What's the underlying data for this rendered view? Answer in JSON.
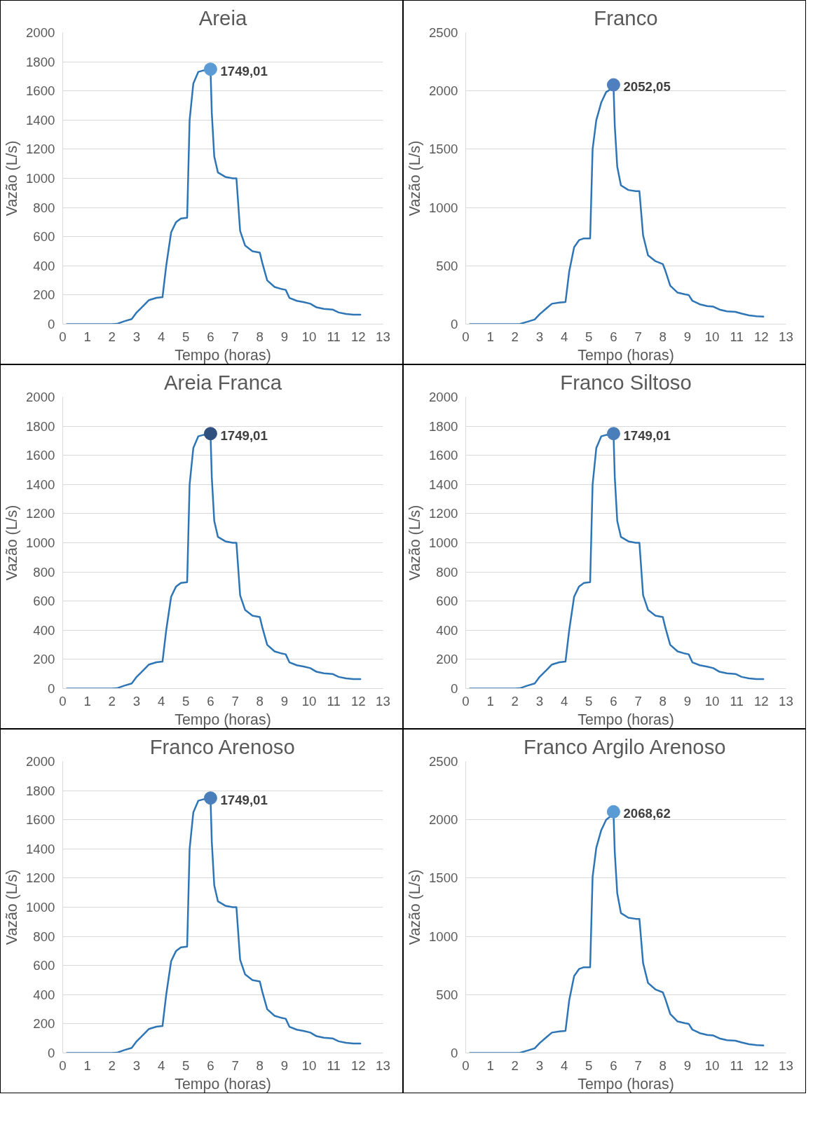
{
  "chart_data": [
    {
      "type": "line",
      "title": "Areia",
      "xlabel": "Tempo (horas)",
      "ylabel": "Vazão (L/s)",
      "xlim": [
        0,
        13
      ],
      "xticks": [
        0,
        1,
        2,
        3,
        4,
        5,
        6,
        7,
        8,
        9,
        10,
        11,
        12,
        13
      ],
      "ylim": [
        0,
        2000
      ],
      "yticks": [
        0,
        200,
        400,
        600,
        800,
        1000,
        1200,
        1400,
        1600,
        1800,
        2000
      ],
      "grid": "y",
      "series": [
        {
          "color": "#2e75b6",
          "x": [
            0.17,
            0.5,
            1,
            1.5,
            2,
            2.2,
            2.5,
            2.8,
            3.0,
            3.3,
            3.5,
            3.8,
            4.05,
            4.2,
            4.4,
            4.6,
            4.8,
            5.05,
            5.15,
            5.3,
            5.5,
            5.7,
            6.0,
            6.05,
            6.15,
            6.3,
            6.6,
            6.9,
            7.05,
            7.2,
            7.4,
            7.7,
            8.0,
            8.1,
            8.3,
            8.6,
            8.9,
            9.05,
            9.2,
            9.5,
            9.8,
            10.05,
            10.3,
            10.6,
            10.95,
            11.2,
            11.5,
            11.8,
            12.08
          ],
          "values": [
            0,
            0,
            0,
            0,
            0,
            2,
            20,
            35,
            80,
            130,
            165,
            180,
            185,
            400,
            630,
            700,
            725,
            730,
            1400,
            1650,
            1730,
            1740,
            1740,
            1450,
            1150,
            1040,
            1010,
            1000,
            1000,
            640,
            540,
            500,
            490,
            420,
            300,
            255,
            240,
            235,
            180,
            160,
            150,
            140,
            115,
            105,
            100,
            80,
            70,
            65,
            65
          ]
        },
        {
          "type": "scatter",
          "color": "#5b9bd5",
          "x": [
            6.0
          ],
          "values": [
            1749.01
          ],
          "value_labels": [
            "1749,01"
          ]
        }
      ]
    },
    {
      "type": "line",
      "title": "Franco",
      "xlabel": "Tempo (horas)",
      "ylabel": "Vazão (L/s)",
      "xlim": [
        0,
        13
      ],
      "xticks": [
        0,
        1,
        2,
        3,
        4,
        5,
        6,
        7,
        8,
        9,
        10,
        11,
        12,
        13
      ],
      "ylim": [
        0,
        2500
      ],
      "yticks": [
        0,
        500,
        1000,
        1500,
        2000,
        2500
      ],
      "grid": "y",
      "series": [
        {
          "color": "#2e75b6",
          "x": [
            0.17,
            0.5,
            1,
            1.5,
            2,
            2.2,
            2.5,
            2.8,
            3.0,
            3.3,
            3.5,
            3.8,
            4.05,
            4.2,
            4.4,
            4.6,
            4.8,
            5.05,
            5.15,
            5.3,
            5.5,
            5.7,
            6.0,
            6.05,
            6.15,
            6.3,
            6.6,
            6.9,
            7.05,
            7.2,
            7.4,
            7.7,
            8.0,
            8.1,
            8.3,
            8.6,
            8.9,
            9.05,
            9.2,
            9.5,
            9.8,
            10.05,
            10.3,
            10.6,
            10.95,
            11.2,
            11.5,
            11.8,
            12.08
          ],
          "values": [
            0,
            0,
            0,
            0,
            0,
            2,
            20,
            40,
            85,
            140,
            175,
            185,
            190,
            450,
            660,
            720,
            735,
            735,
            1500,
            1750,
            1900,
            1990,
            2030,
            1700,
            1350,
            1190,
            1150,
            1140,
            1140,
            760,
            590,
            540,
            515,
            460,
            330,
            270,
            255,
            250,
            200,
            170,
            155,
            150,
            125,
            110,
            105,
            90,
            75,
            68,
            65
          ]
        },
        {
          "type": "scatter",
          "color": "#4f7fbf",
          "x": [
            6.0
          ],
          "values": [
            2052.05
          ],
          "value_labels": [
            "2052,05"
          ]
        }
      ]
    },
    {
      "type": "line",
      "title": "Areia Franca",
      "xlabel": "Tempo (horas)",
      "ylabel": "Vazão (L/s)",
      "xlim": [
        0,
        13
      ],
      "xticks": [
        0,
        1,
        2,
        3,
        4,
        5,
        6,
        7,
        8,
        9,
        10,
        11,
        12,
        13
      ],
      "ylim": [
        0,
        2000
      ],
      "yticks": [
        0,
        200,
        400,
        600,
        800,
        1000,
        1200,
        1400,
        1600,
        1800,
        2000
      ],
      "grid": "y",
      "series": [
        {
          "color": "#2e75b6",
          "x": [
            0.17,
            0.5,
            1,
            1.5,
            2,
            2.2,
            2.5,
            2.8,
            3.0,
            3.3,
            3.5,
            3.8,
            4.05,
            4.2,
            4.4,
            4.6,
            4.8,
            5.05,
            5.15,
            5.3,
            5.5,
            5.7,
            6.0,
            6.05,
            6.15,
            6.3,
            6.6,
            6.9,
            7.05,
            7.2,
            7.4,
            7.7,
            8.0,
            8.1,
            8.3,
            8.6,
            8.9,
            9.05,
            9.2,
            9.5,
            9.8,
            10.05,
            10.3,
            10.6,
            10.95,
            11.2,
            11.5,
            11.8,
            12.08
          ],
          "values": [
            0,
            0,
            0,
            0,
            0,
            2,
            20,
            35,
            80,
            130,
            165,
            180,
            185,
            400,
            630,
            700,
            725,
            730,
            1400,
            1650,
            1730,
            1740,
            1740,
            1450,
            1150,
            1040,
            1010,
            1000,
            1000,
            640,
            540,
            500,
            490,
            420,
            300,
            255,
            240,
            235,
            180,
            160,
            150,
            140,
            115,
            105,
            100,
            80,
            70,
            65,
            65
          ]
        },
        {
          "type": "scatter",
          "color": "#2f4f7f",
          "x": [
            6.0
          ],
          "values": [
            1749.01
          ],
          "value_labels": [
            "1749,01"
          ]
        }
      ]
    },
    {
      "type": "line",
      "title": "Franco Siltoso",
      "xlabel": "Tempo (horas)",
      "ylabel": "Vazão (L/s)",
      "xlim": [
        0,
        13
      ],
      "xticks": [
        0,
        1,
        2,
        3,
        4,
        5,
        6,
        7,
        8,
        9,
        10,
        11,
        12,
        13
      ],
      "ylim": [
        0,
        2000
      ],
      "yticks": [
        0,
        200,
        400,
        600,
        800,
        1000,
        1200,
        1400,
        1600,
        1800,
        2000
      ],
      "grid": "y",
      "series": [
        {
          "color": "#2e75b6",
          "x": [
            0.17,
            0.5,
            1,
            1.5,
            2,
            2.2,
            2.5,
            2.8,
            3.0,
            3.3,
            3.5,
            3.8,
            4.05,
            4.2,
            4.4,
            4.6,
            4.8,
            5.05,
            5.15,
            5.3,
            5.5,
            5.7,
            6.0,
            6.05,
            6.15,
            6.3,
            6.6,
            6.9,
            7.05,
            7.2,
            7.4,
            7.7,
            8.0,
            8.1,
            8.3,
            8.6,
            8.9,
            9.05,
            9.2,
            9.5,
            9.8,
            10.05,
            10.3,
            10.6,
            10.95,
            11.2,
            11.5,
            11.8,
            12.08
          ],
          "values": [
            0,
            0,
            0,
            0,
            0,
            2,
            20,
            35,
            80,
            130,
            165,
            180,
            185,
            400,
            630,
            700,
            725,
            730,
            1400,
            1650,
            1730,
            1740,
            1740,
            1450,
            1150,
            1040,
            1010,
            1000,
            1000,
            640,
            540,
            500,
            490,
            420,
            300,
            255,
            240,
            235,
            180,
            160,
            150,
            140,
            115,
            105,
            100,
            80,
            70,
            65,
            65
          ]
        },
        {
          "type": "scatter",
          "color": "#4a7ebb",
          "x": [
            6.0
          ],
          "values": [
            1749.01
          ],
          "value_labels": [
            "1749,01"
          ]
        }
      ]
    },
    {
      "type": "line",
      "title": "Franco Arenoso",
      "xlabel": "Tempo (horas)",
      "ylabel": "Vazão (L/s)",
      "xlim": [
        0,
        13
      ],
      "xticks": [
        0,
        1,
        2,
        3,
        4,
        5,
        6,
        7,
        8,
        9,
        10,
        11,
        12,
        13
      ],
      "ylim": [
        0,
        2000
      ],
      "yticks": [
        0,
        200,
        400,
        600,
        800,
        1000,
        1200,
        1400,
        1600,
        1800,
        2000
      ],
      "grid": "y",
      "series": [
        {
          "color": "#2e75b6",
          "x": [
            0.17,
            0.5,
            1,
            1.5,
            2,
            2.2,
            2.5,
            2.8,
            3.0,
            3.3,
            3.5,
            3.8,
            4.05,
            4.2,
            4.4,
            4.6,
            4.8,
            5.05,
            5.15,
            5.3,
            5.5,
            5.7,
            6.0,
            6.05,
            6.15,
            6.3,
            6.6,
            6.9,
            7.05,
            7.2,
            7.4,
            7.7,
            8.0,
            8.1,
            8.3,
            8.6,
            8.9,
            9.05,
            9.2,
            9.5,
            9.8,
            10.05,
            10.3,
            10.6,
            10.95,
            11.2,
            11.5,
            11.8,
            12.08
          ],
          "values": [
            0,
            0,
            0,
            0,
            0,
            2,
            20,
            35,
            80,
            130,
            165,
            180,
            185,
            400,
            630,
            700,
            725,
            730,
            1400,
            1650,
            1730,
            1740,
            1740,
            1450,
            1150,
            1040,
            1010,
            1000,
            1000,
            640,
            540,
            500,
            490,
            420,
            300,
            255,
            240,
            235,
            180,
            160,
            150,
            140,
            115,
            105,
            100,
            80,
            70,
            65,
            65
          ]
        },
        {
          "type": "scatter",
          "color": "#4a7ebb",
          "x": [
            6.0
          ],
          "values": [
            1749.01
          ],
          "value_labels": [
            "1749,01"
          ]
        }
      ]
    },
    {
      "type": "line",
      "title": "Franco Argilo Arenoso",
      "xlabel": "Tempo (horas)",
      "ylabel": "Vazão (L/s)",
      "xlim": [
        0,
        13
      ],
      "xticks": [
        0,
        1,
        2,
        3,
        4,
        5,
        6,
        7,
        8,
        9,
        10,
        11,
        12,
        13
      ],
      "ylim": [
        0,
        2500
      ],
      "yticks": [
        0,
        500,
        1000,
        1500,
        2000,
        2500
      ],
      "grid": "y",
      "series": [
        {
          "color": "#2e75b6",
          "x": [
            0.17,
            0.5,
            1,
            1.5,
            2,
            2.2,
            2.5,
            2.8,
            3.0,
            3.3,
            3.5,
            3.8,
            4.05,
            4.2,
            4.4,
            4.6,
            4.8,
            5.05,
            5.15,
            5.3,
            5.5,
            5.7,
            6.0,
            6.05,
            6.15,
            6.3,
            6.6,
            6.9,
            7.05,
            7.2,
            7.4,
            7.7,
            8.0,
            8.1,
            8.3,
            8.6,
            8.9,
            9.05,
            9.2,
            9.5,
            9.8,
            10.05,
            10.3,
            10.6,
            10.95,
            11.2,
            11.5,
            11.8,
            12.08
          ],
          "values": [
            0,
            0,
            0,
            0,
            0,
            2,
            20,
            40,
            85,
            140,
            175,
            185,
            190,
            450,
            660,
            720,
            735,
            735,
            1510,
            1760,
            1910,
            2000,
            2050,
            1720,
            1370,
            1200,
            1160,
            1150,
            1150,
            770,
            600,
            545,
            520,
            465,
            335,
            270,
            255,
            250,
            200,
            170,
            155,
            150,
            125,
            110,
            105,
            90,
            75,
            68,
            65
          ]
        },
        {
          "type": "scatter",
          "color": "#5b9bd5",
          "x": [
            6.0
          ],
          "values": [
            2068.62
          ],
          "value_labels": [
            "2068,62"
          ]
        }
      ]
    }
  ]
}
